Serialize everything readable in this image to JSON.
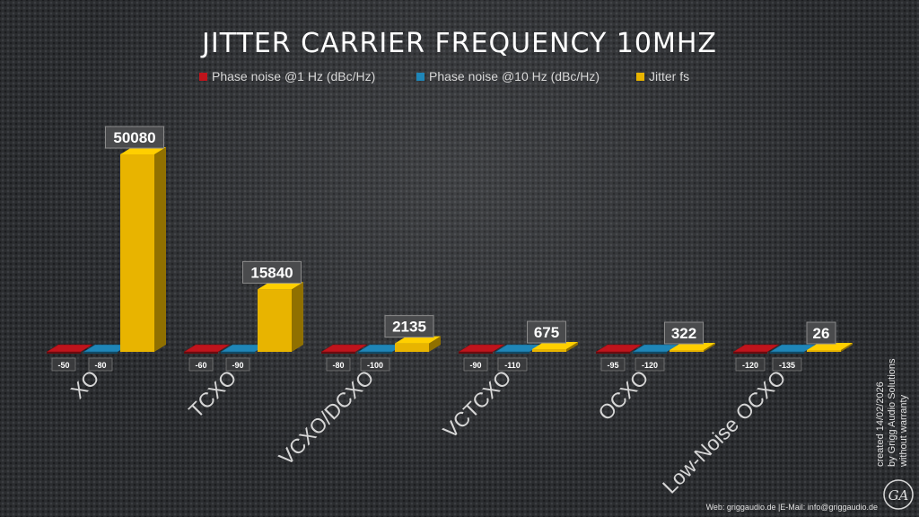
{
  "chart_data": {
    "type": "bar",
    "title": "JITTER CARRIER FREQUENCY 10MHZ",
    "categories": [
      "XO",
      "TCXO",
      "VCXO/DCXO",
      "VCTCXO",
      "OCXO",
      "Low-Noise OCXO"
    ],
    "series": [
      {
        "name": "Phase noise @1 Hz (dBc/Hz)",
        "color": "#c0141c",
        "values": [
          -50,
          -60,
          -80,
          -90,
          -95,
          -120
        ],
        "labels": [
          "-50",
          "-60",
          "-80",
          "-90",
          "-95",
          "-120"
        ]
      },
      {
        "name": "Phase noise @10 Hz (dBc/Hz)",
        "color": "#1f86b8",
        "values": [
          -80,
          -90,
          -100,
          -110,
          -120,
          -135
        ],
        "labels": [
          "-80",
          "-90",
          "-100",
          "-110",
          "-120",
          "-135"
        ]
      },
      {
        "name": "Jitter fs",
        "color": "#e8b400",
        "values": [
          50080,
          15840,
          2135,
          675,
          322,
          26
        ],
        "labels": [
          "50080",
          "15840",
          "2135",
          "675",
          "322",
          "26"
        ]
      }
    ],
    "legend_position": "top",
    "grid": false,
    "style": "3d"
  },
  "side_note": {
    "line1": "created 14/02/2026",
    "line2": "by Grigg Audio Solutions",
    "line3": "without warranty"
  },
  "footer": {
    "text": "Web: griggaudio.de  |E-Mail: info@griggaudio.de"
  },
  "logo": {
    "letters": "GA"
  }
}
